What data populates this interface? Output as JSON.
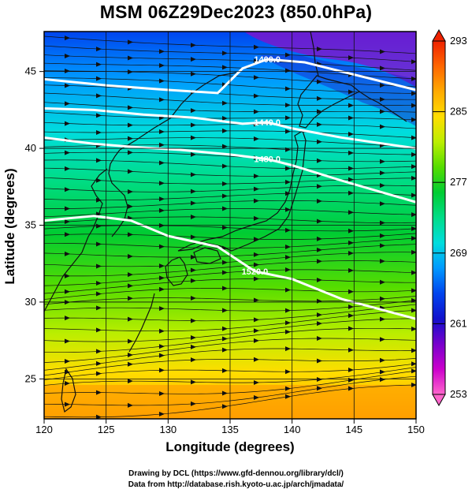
{
  "title": "MSM 06Z29Dec2023 (850.0hPa)",
  "chart_data": {
    "type": "map",
    "title": "MSM 06Z29Dec2023 (850.0hPa)",
    "xlabel": "Longitude (degrees)",
    "ylabel": "Latitude  (degrees)",
    "xlim": [
      120,
      150
    ],
    "ylim": [
      22.4,
      47.6
    ],
    "xticks": [
      120,
      125,
      130,
      135,
      140,
      145,
      150
    ],
    "yticks": [
      25,
      30,
      35,
      40,
      45
    ],
    "grid": true,
    "colorbar": {
      "range": [
        253,
        293
      ],
      "ticks": [
        253,
        261,
        269,
        277,
        285,
        293
      ],
      "colors": [
        "#ff66cc",
        "#cc00cc",
        "#7700cc",
        "#1111cc",
        "#0044ee",
        "#0099ff",
        "#00dddd",
        "#00dd88",
        "#00cc33",
        "#55dd00",
        "#bbee00",
        "#ffdd00",
        "#ffaa00",
        "#ff6600",
        "#ee2200"
      ]
    },
    "contours": [
      {
        "label": "1400.0",
        "points": [
          [
            120,
            44.5
          ],
          [
            125,
            44.1
          ],
          [
            130,
            43.8
          ],
          [
            134,
            43.6
          ],
          [
            136,
            45.2
          ],
          [
            138,
            45.8
          ],
          [
            141,
            45.6
          ],
          [
            145,
            44.8
          ],
          [
            150,
            43.8
          ]
        ]
      },
      {
        "label": "1440.0",
        "points": [
          [
            120,
            42.6
          ],
          [
            124,
            42.5
          ],
          [
            128,
            42.2
          ],
          [
            132,
            42.0
          ],
          [
            136,
            41.6
          ],
          [
            138,
            41.7
          ],
          [
            140,
            41.3
          ],
          [
            144,
            40.7
          ],
          [
            150,
            40.0
          ]
        ]
      },
      {
        "label": "1480.0",
        "points": [
          [
            120,
            40.7
          ],
          [
            124,
            40.3
          ],
          [
            127,
            40.1
          ],
          [
            131,
            39.9
          ],
          [
            135,
            39.6
          ],
          [
            138,
            39.3
          ],
          [
            140,
            38.9
          ],
          [
            144,
            37.9
          ],
          [
            150,
            36.5
          ]
        ]
      },
      {
        "label": "1520.0",
        "points": [
          [
            120,
            35.3
          ],
          [
            124,
            35.6
          ],
          [
            127,
            35.3
          ],
          [
            130,
            34.3
          ],
          [
            134,
            33.6
          ],
          [
            137,
            32.0
          ],
          [
            140,
            31.5
          ],
          [
            144,
            30.2
          ],
          [
            150,
            28.9
          ]
        ]
      }
    ]
  },
  "footer": {
    "line1": "Drawing by DCL (https://www.gfd-dennou.org/library/dcl/)",
    "line2": "Data from http://database.rish.kyoto-u.ac.jp/arch/jmadata/"
  },
  "colors": {
    "frame": "#000000",
    "contour": "#ffffff",
    "coast": "#111111",
    "streamline": "#111111"
  }
}
